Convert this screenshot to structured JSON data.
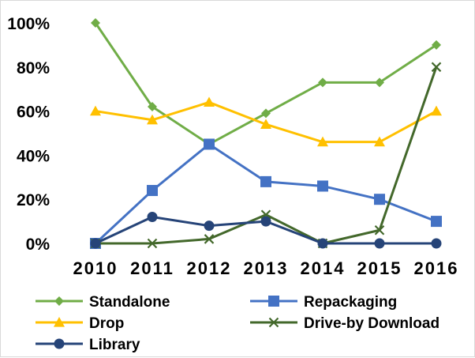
{
  "chart_data": {
    "type": "line",
    "x": [
      "2010",
      "2011",
      "2012",
      "2013",
      "2014",
      "2015",
      "2016"
    ],
    "ylim": [
      0,
      100
    ],
    "y_ticks": [
      "0%",
      "20%",
      "40%",
      "60%",
      "80%",
      "100%"
    ],
    "y_tick_values": [
      0,
      20,
      40,
      60,
      80,
      100
    ],
    "grid": false,
    "legend_position": "bottom",
    "series": [
      {
        "name": "Standalone",
        "color": "#70ad47",
        "marker": "diamond",
        "values": [
          100,
          62,
          45,
          59,
          73,
          73,
          90
        ]
      },
      {
        "name": "Repackaging",
        "color": "#4472c4",
        "marker": "square",
        "values": [
          0,
          24,
          45,
          28,
          26,
          20,
          10
        ]
      },
      {
        "name": "Drop",
        "color": "#ffc000",
        "marker": "triangle",
        "values": [
          60,
          56,
          64,
          54,
          46,
          46,
          60
        ]
      },
      {
        "name": "Drive-by Download",
        "color": "#43682b",
        "marker": "x",
        "values": [
          0,
          0,
          2,
          13,
          0,
          6,
          80
        ]
      },
      {
        "name": "Library",
        "color": "#264478",
        "marker": "circle",
        "values": [
          0,
          12,
          8,
          10,
          0,
          0,
          0
        ]
      }
    ]
  }
}
